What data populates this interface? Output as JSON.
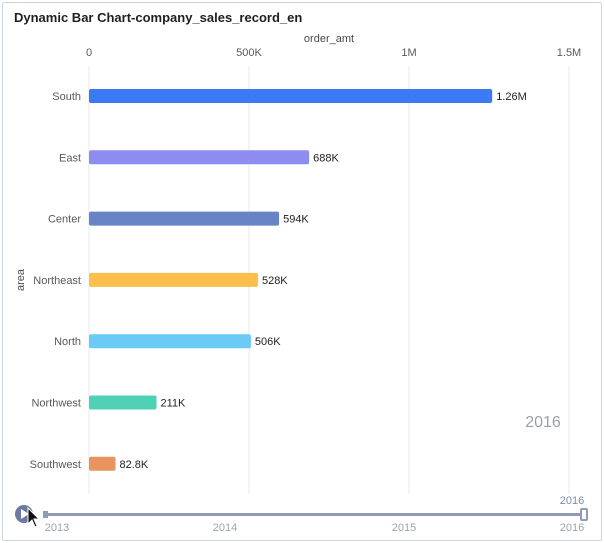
{
  "chart_data": {
    "type": "bar",
    "orientation": "horizontal",
    "title": "Dynamic Bar Chart-company_sales_record_en",
    "xlabel": "order_amt",
    "ylabel": "area",
    "xlim": [
      0,
      1500000
    ],
    "xticks": [
      0,
      500000,
      1000000,
      1500000
    ],
    "xtick_labels": [
      "0",
      "500K",
      "1M",
      "1.5M"
    ],
    "categories": [
      "South",
      "East",
      "Center",
      "Northeast",
      "North",
      "Northwest",
      "Southwest"
    ],
    "values": [
      1260000,
      688000,
      594000,
      528000,
      506000,
      211000,
      82800
    ],
    "value_labels": [
      "1.26M",
      "688K",
      "594K",
      "528K",
      "506K",
      "211K",
      "82.8K"
    ],
    "colors": [
      "#3a7bf5",
      "#8d8cf0",
      "#6782c5",
      "#fcbf4b",
      "#6ccbf6",
      "#4fd1b5",
      "#e9935f"
    ],
    "current_year": "2016",
    "timeline": {
      "years": [
        "2013",
        "2014",
        "2015",
        "2016"
      ],
      "current_label": "2016",
      "position": 1.0
    }
  }
}
